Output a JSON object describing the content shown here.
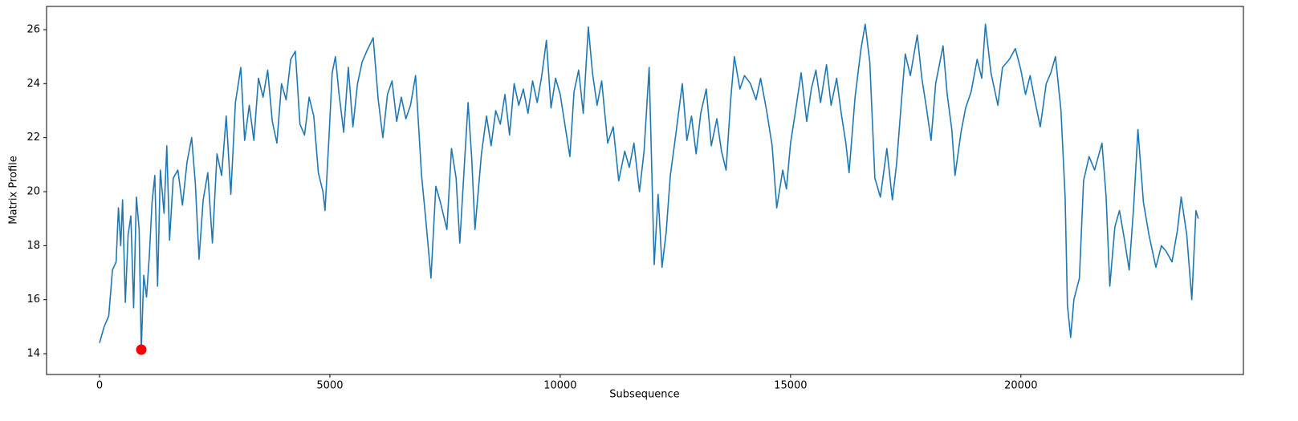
{
  "chart_data": {
    "type": "line",
    "xlabel": "Subsequence",
    "ylabel": "Matrix Profile",
    "color": "#1f77b4",
    "x": [
      0,
      100,
      200,
      280,
      360,
      410,
      460,
      500,
      560,
      620,
      680,
      740,
      800,
      860,
      906,
      960,
      1020,
      1080,
      1140,
      1200,
      1260,
      1320,
      1400,
      1460,
      1520,
      1600,
      1700,
      1800,
      1900,
      2000,
      2080,
      2160,
      2250,
      2350,
      2450,
      2550,
      2650,
      2750,
      2850,
      2950,
      3066,
      3150,
      3250,
      3350,
      3450,
      3550,
      3650,
      3750,
      3850,
      3950,
      4050,
      4150,
      4250,
      4350,
      4450,
      4550,
      4650,
      4750,
      4850,
      4895,
      4980,
      5050,
      5120,
      5200,
      5300,
      5400,
      5500,
      5600,
      5700,
      5800,
      5940,
      6050,
      6150,
      6250,
      6350,
      6450,
      6550,
      6650,
      6750,
      6860,
      6990,
      7080,
      7195,
      7300,
      7400,
      7540,
      7640,
      7740,
      7820,
      7920,
      8000,
      8080,
      8150,
      8290,
      8400,
      8500,
      8600,
      8700,
      8800,
      8900,
      9000,
      9100,
      9200,
      9300,
      9400,
      9500,
      9600,
      9700,
      9800,
      9900,
      10000,
      10100,
      10210,
      10300,
      10400,
      10500,
      10610,
      10700,
      10800,
      10900,
      11030,
      11150,
      11270,
      11400,
      11500,
      11600,
      11720,
      11820,
      11930,
      12040,
      12125,
      12210,
      12300,
      12390,
      12500,
      12650,
      12750,
      12850,
      12950,
      13050,
      13170,
      13280,
      13400,
      13500,
      13600,
      13700,
      13780,
      13900,
      14000,
      14130,
      14250,
      14350,
      14480,
      14600,
      14700,
      14830,
      14910,
      15000,
      15100,
      15230,
      15350,
      15450,
      15550,
      15650,
      15780,
      15880,
      16000,
      16100,
      16200,
      16270,
      16400,
      16530,
      16620,
      16720,
      16830,
      16950,
      17090,
      17210,
      17300,
      17400,
      17490,
      17600,
      17750,
      17850,
      17950,
      18050,
      18150,
      18310,
      18400,
      18500,
      18570,
      18700,
      18800,
      18920,
      19050,
      19150,
      19230,
      19350,
      19500,
      19600,
      19750,
      19880,
      20000,
      20100,
      20200,
      20300,
      20420,
      20550,
      20650,
      20750,
      20870,
      20960,
      21010,
      21080,
      21150,
      21270,
      21360,
      21480,
      21600,
      21760,
      21850,
      21930,
      22040,
      22140,
      22250,
      22350,
      22450,
      22540,
      22660,
      22780,
      22930,
      23050,
      23150,
      23280,
      23400,
      23480,
      23600,
      23710,
      23800,
      23850
    ],
    "values": [
      14.4,
      15.0,
      15.4,
      17.1,
      17.4,
      19.4,
      18.0,
      19.7,
      15.9,
      18.4,
      19.1,
      15.7,
      19.8,
      18.6,
      14.15,
      16.9,
      16.1,
      17.6,
      19.6,
      20.6,
      16.5,
      20.8,
      19.2,
      21.7,
      18.2,
      20.5,
      20.8,
      19.5,
      21.1,
      22.0,
      20.3,
      17.5,
      19.7,
      20.7,
      18.1,
      21.4,
      20.6,
      22.8,
      19.9,
      23.3,
      24.6,
      21.9,
      23.2,
      21.9,
      24.2,
      23.5,
      24.5,
      22.6,
      21.8,
      24.0,
      23.4,
      24.9,
      25.2,
      22.5,
      22.1,
      23.5,
      22.8,
      20.7,
      20.0,
      19.3,
      22.0,
      24.4,
      25.0,
      23.6,
      22.2,
      24.6,
      22.4,
      24.0,
      24.8,
      25.2,
      25.7,
      23.4,
      22.0,
      23.6,
      24.1,
      22.6,
      23.5,
      22.7,
      23.2,
      24.3,
      20.6,
      19.0,
      16.8,
      20.2,
      19.6,
      18.6,
      21.6,
      20.5,
      18.1,
      21.0,
      23.3,
      21.2,
      18.6,
      21.4,
      22.8,
      21.7,
      23.0,
      22.5,
      23.6,
      22.1,
      24.0,
      23.2,
      23.8,
      22.9,
      24.1,
      23.3,
      24.3,
      25.6,
      23.1,
      24.2,
      23.6,
      22.5,
      21.3,
      23.7,
      24.5,
      22.9,
      26.1,
      24.4,
      23.2,
      24.1,
      21.8,
      22.4,
      20.4,
      21.5,
      20.9,
      21.8,
      20.0,
      21.5,
      24.6,
      17.3,
      19.9,
      17.2,
      18.5,
      20.6,
      22.0,
      24.0,
      21.9,
      22.8,
      21.4,
      22.9,
      23.8,
      21.7,
      22.7,
      21.5,
      20.8,
      23.4,
      25.0,
      23.8,
      24.3,
      24.0,
      23.4,
      24.2,
      23.0,
      21.7,
      19.4,
      20.8,
      20.1,
      21.8,
      22.9,
      24.4,
      22.6,
      23.8,
      24.5,
      23.3,
      24.7,
      23.2,
      24.2,
      22.9,
      21.8,
      20.7,
      23.5,
      25.3,
      26.2,
      24.8,
      20.5,
      19.8,
      21.6,
      19.7,
      21.0,
      23.2,
      25.1,
      24.3,
      25.8,
      24.2,
      23.1,
      21.9,
      24.0,
      25.4,
      23.6,
      22.3,
      20.6,
      22.2,
      23.1,
      23.7,
      24.9,
      24.2,
      26.2,
      24.4,
      23.2,
      24.6,
      24.9,
      25.3,
      24.5,
      23.6,
      24.3,
      23.4,
      22.4,
      24.0,
      24.4,
      25.0,
      23.0,
      19.8,
      15.8,
      14.6,
      16.0,
      16.8,
      20.4,
      21.3,
      20.8,
      21.8,
      19.8,
      16.5,
      18.7,
      19.3,
      18.2,
      17.1,
      19.5,
      22.3,
      19.6,
      18.4,
      17.2,
      18.0,
      17.8,
      17.4,
      18.6,
      19.8,
      18.4,
      16.0,
      19.3,
      19.0
    ],
    "highlight": {
      "x": 906,
      "y": 14.15,
      "color": "#ff0000"
    },
    "xlim": [
      -1150,
      24830
    ],
    "ylim": [
      13.23,
      26.86
    ],
    "xticks": [
      0,
      5000,
      10000,
      15000,
      20000
    ],
    "yticks": [
      14,
      16,
      18,
      20,
      22,
      24,
      26
    ],
    "grid": false
  }
}
